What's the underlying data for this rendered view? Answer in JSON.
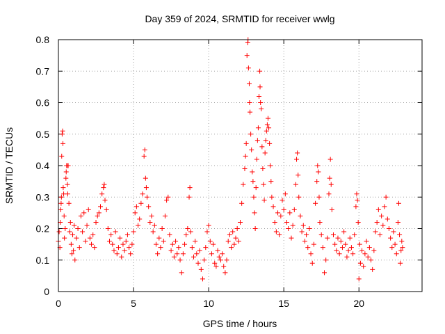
{
  "chart_data": {
    "type": "scatter",
    "title": "Day 359 of 2024, SRMTID for receiver wwlg",
    "xlabel": "GPS time / hours",
    "ylabel": "SRMTID / TECUs",
    "xlim": [
      0,
      24.2
    ],
    "ylim": [
      0,
      0.8
    ],
    "xticks": [
      0,
      5,
      10,
      15,
      20
    ],
    "yticks": [
      0,
      0.1,
      0.2,
      0.3,
      0.4,
      0.5,
      0.6,
      0.7,
      0.8
    ],
    "xtick_labels": [
      "0",
      "5",
      "10",
      "15",
      "20"
    ],
    "ytick_labels": [
      "0",
      "0.1",
      "0.2",
      "0.3",
      "0.4",
      "0.5",
      "0.6",
      "0.7",
      "0.8"
    ],
    "grid": true,
    "marker": "+",
    "color": "#ff0000",
    "series": [
      {
        "name": "SRMTID",
        "points": [
          [
            0.0,
            0.16
          ],
          [
            0.05,
            0.19
          ],
          [
            0.1,
            0.14
          ],
          [
            0.12,
            0.22
          ],
          [
            0.15,
            0.26
          ],
          [
            0.18,
            0.28
          ],
          [
            0.2,
            0.3
          ],
          [
            0.22,
            0.43
          ],
          [
            0.25,
            0.5
          ],
          [
            0.28,
            0.51
          ],
          [
            0.3,
            0.47
          ],
          [
            0.32,
            0.33
          ],
          [
            0.35,
            0.31
          ],
          [
            0.38,
            0.24
          ],
          [
            0.4,
            0.17
          ],
          [
            0.45,
            0.2
          ],
          [
            0.5,
            0.36
          ],
          [
            0.52,
            0.38
          ],
          [
            0.55,
            0.4
          ],
          [
            0.58,
            0.4
          ],
          [
            0.6,
            0.34
          ],
          [
            0.62,
            0.31
          ],
          [
            0.65,
            0.4
          ],
          [
            0.7,
            0.28
          ],
          [
            0.75,
            0.19
          ],
          [
            0.8,
            0.22
          ],
          [
            0.85,
            0.15
          ],
          [
            0.9,
            0.12
          ],
          [
            0.95,
            0.18
          ],
          [
            1.0,
            0.13
          ],
          [
            1.05,
            0.21
          ],
          [
            1.1,
            0.1
          ],
          [
            1.2,
            0.17
          ],
          [
            1.3,
            0.2
          ],
          [
            1.4,
            0.14
          ],
          [
            1.5,
            0.24
          ],
          [
            1.6,
            0.19
          ],
          [
            1.7,
            0.25
          ],
          [
            1.8,
            0.16
          ],
          [
            1.9,
            0.21
          ],
          [
            2.0,
            0.26
          ],
          [
            2.1,
            0.17
          ],
          [
            2.2,
            0.15
          ],
          [
            2.3,
            0.18
          ],
          [
            2.4,
            0.14
          ],
          [
            2.5,
            0.22
          ],
          [
            2.6,
            0.24
          ],
          [
            2.7,
            0.25
          ],
          [
            2.8,
            0.27
          ],
          [
            2.9,
            0.31
          ],
          [
            3.0,
            0.33
          ],
          [
            3.05,
            0.34
          ],
          [
            3.1,
            0.29
          ],
          [
            3.2,
            0.26
          ],
          [
            3.3,
            0.2
          ],
          [
            3.4,
            0.16
          ],
          [
            3.5,
            0.18
          ],
          [
            3.6,
            0.15
          ],
          [
            3.7,
            0.13
          ],
          [
            3.8,
            0.19
          ],
          [
            3.9,
            0.12
          ],
          [
            4.0,
            0.14
          ],
          [
            4.1,
            0.17
          ],
          [
            4.2,
            0.11
          ],
          [
            4.3,
            0.15
          ],
          [
            4.4,
            0.13
          ],
          [
            4.5,
            0.16
          ],
          [
            4.6,
            0.18
          ],
          [
            4.7,
            0.14
          ],
          [
            4.8,
            0.12
          ],
          [
            4.9,
            0.15
          ],
          [
            5.0,
            0.19
          ],
          [
            5.1,
            0.25
          ],
          [
            5.2,
            0.27
          ],
          [
            5.3,
            0.21
          ],
          [
            5.4,
            0.23
          ],
          [
            5.5,
            0.28
          ],
          [
            5.6,
            0.31
          ],
          [
            5.7,
            0.43
          ],
          [
            5.75,
            0.45
          ],
          [
            5.8,
            0.36
          ],
          [
            5.85,
            0.33
          ],
          [
            5.9,
            0.3
          ],
          [
            6.0,
            0.27
          ],
          [
            6.1,
            0.22
          ],
          [
            6.2,
            0.24
          ],
          [
            6.3,
            0.19
          ],
          [
            6.4,
            0.21
          ],
          [
            6.5,
            0.15
          ],
          [
            6.6,
            0.12
          ],
          [
            6.7,
            0.17
          ],
          [
            6.8,
            0.14
          ],
          [
            6.9,
            0.2
          ],
          [
            7.0,
            0.16
          ],
          [
            7.1,
            0.24
          ],
          [
            7.2,
            0.29
          ],
          [
            7.3,
            0.3
          ],
          [
            7.4,
            0.18
          ],
          [
            7.5,
            0.13
          ],
          [
            7.6,
            0.15
          ],
          [
            7.7,
            0.11
          ],
          [
            7.8,
            0.16
          ],
          [
            7.9,
            0.12
          ],
          [
            8.0,
            0.14
          ],
          [
            8.1,
            0.1
          ],
          [
            8.2,
            0.06
          ],
          [
            8.3,
            0.12
          ],
          [
            8.4,
            0.15
          ],
          [
            8.5,
            0.18
          ],
          [
            8.6,
            0.2
          ],
          [
            8.7,
            0.3
          ],
          [
            8.75,
            0.33
          ],
          [
            8.8,
            0.19
          ],
          [
            8.9,
            0.14
          ],
          [
            9.0,
            0.11
          ],
          [
            9.1,
            0.16
          ],
          [
            9.2,
            0.12
          ],
          [
            9.3,
            0.09
          ],
          [
            9.4,
            0.13
          ],
          [
            9.5,
            0.07
          ],
          [
            9.6,
            0.04
          ],
          [
            9.7,
            0.1
          ],
          [
            9.8,
            0.14
          ],
          [
            9.9,
            0.19
          ],
          [
            10.0,
            0.21
          ],
          [
            10.1,
            0.16
          ],
          [
            10.2,
            0.12
          ],
          [
            10.3,
            0.15
          ],
          [
            10.4,
            0.09
          ],
          [
            10.5,
            0.08
          ],
          [
            10.6,
            0.13
          ],
          [
            10.7,
            0.11
          ],
          [
            10.8,
            0.1
          ],
          [
            10.9,
            0.12
          ],
          [
            11.0,
            0.08
          ],
          [
            11.1,
            0.06
          ],
          [
            11.2,
            0.1
          ],
          [
            11.3,
            0.16
          ],
          [
            11.4,
            0.18
          ],
          [
            11.5,
            0.14
          ],
          [
            11.6,
            0.19
          ],
          [
            11.7,
            0.15
          ],
          [
            11.8,
            0.17
          ],
          [
            11.9,
            0.2
          ],
          [
            12.0,
            0.16
          ],
          [
            12.1,
            0.22
          ],
          [
            12.2,
            0.28
          ],
          [
            12.3,
            0.34
          ],
          [
            12.4,
            0.39
          ],
          [
            12.45,
            0.43
          ],
          [
            12.5,
            0.47
          ],
          [
            12.55,
            0.75
          ],
          [
            12.6,
            0.79
          ],
          [
            12.62,
            0.8
          ],
          [
            12.65,
            0.71
          ],
          [
            12.7,
            0.66
          ],
          [
            12.72,
            0.6
          ],
          [
            12.75,
            0.57
          ],
          [
            12.8,
            0.5
          ],
          [
            12.85,
            0.45
          ],
          [
            12.9,
            0.38
          ],
          [
            12.95,
            0.35
          ],
          [
            13.0,
            0.3
          ],
          [
            13.05,
            0.25
          ],
          [
            13.1,
            0.2
          ],
          [
            13.15,
            0.33
          ],
          [
            13.2,
            0.42
          ],
          [
            13.25,
            0.48
          ],
          [
            13.3,
            0.52
          ],
          [
            13.35,
            0.62
          ],
          [
            13.4,
            0.7
          ],
          [
            13.42,
            0.65
          ],
          [
            13.45,
            0.6
          ],
          [
            13.5,
            0.58
          ],
          [
            13.55,
            0.46
          ],
          [
            13.6,
            0.39
          ],
          [
            13.65,
            0.34
          ],
          [
            13.7,
            0.29
          ],
          [
            13.75,
            0.44
          ],
          [
            13.8,
            0.48
          ],
          [
            13.85,
            0.51
          ],
          [
            13.9,
            0.53
          ],
          [
            13.95,
            0.55
          ],
          [
            14.0,
            0.52
          ],
          [
            14.05,
            0.47
          ],
          [
            14.1,
            0.4
          ],
          [
            14.15,
            0.35
          ],
          [
            14.2,
            0.3
          ],
          [
            14.3,
            0.27
          ],
          [
            14.4,
            0.22
          ],
          [
            14.5,
            0.19
          ],
          [
            14.6,
            0.25
          ],
          [
            14.7,
            0.18
          ],
          [
            14.8,
            0.24
          ],
          [
            14.9,
            0.29
          ],
          [
            15.0,
            0.26
          ],
          [
            15.1,
            0.31
          ],
          [
            15.2,
            0.22
          ],
          [
            15.3,
            0.2
          ],
          [
            15.4,
            0.25
          ],
          [
            15.5,
            0.17
          ],
          [
            15.6,
            0.21
          ],
          [
            15.7,
            0.26
          ],
          [
            15.8,
            0.34
          ],
          [
            15.85,
            0.42
          ],
          [
            15.9,
            0.44
          ],
          [
            15.95,
            0.37
          ],
          [
            16.0,
            0.3
          ],
          [
            16.1,
            0.24
          ],
          [
            16.2,
            0.19
          ],
          [
            16.3,
            0.21
          ],
          [
            16.4,
            0.16
          ],
          [
            16.5,
            0.18
          ],
          [
            16.6,
            0.14
          ],
          [
            16.7,
            0.2
          ],
          [
            16.8,
            0.12
          ],
          [
            16.9,
            0.09
          ],
          [
            17.0,
            0.15
          ],
          [
            17.1,
            0.28
          ],
          [
            17.2,
            0.35
          ],
          [
            17.25,
            0.4
          ],
          [
            17.3,
            0.38
          ],
          [
            17.35,
            0.3
          ],
          [
            17.4,
            0.22
          ],
          [
            17.5,
            0.18
          ],
          [
            17.6,
            0.14
          ],
          [
            17.7,
            0.06
          ],
          [
            17.8,
            0.1
          ],
          [
            17.9,
            0.17
          ],
          [
            18.0,
            0.31
          ],
          [
            18.05,
            0.36
          ],
          [
            18.1,
            0.42
          ],
          [
            18.15,
            0.34
          ],
          [
            18.2,
            0.26
          ],
          [
            18.3,
            0.18
          ],
          [
            18.4,
            0.15
          ],
          [
            18.5,
            0.13
          ],
          [
            18.6,
            0.17
          ],
          [
            18.7,
            0.12
          ],
          [
            18.8,
            0.16
          ],
          [
            18.9,
            0.14
          ],
          [
            19.0,
            0.19
          ],
          [
            19.1,
            0.15
          ],
          [
            19.2,
            0.11
          ],
          [
            19.3,
            0.13
          ],
          [
            19.4,
            0.17
          ],
          [
            19.5,
            0.14
          ],
          [
            19.6,
            0.12
          ],
          [
            19.7,
            0.18
          ],
          [
            19.8,
            0.27
          ],
          [
            19.85,
            0.31
          ],
          [
            19.9,
            0.29
          ],
          [
            19.95,
            0.22
          ],
          [
            20.0,
            0.04
          ],
          [
            20.05,
            0.15
          ],
          [
            20.1,
            0.09
          ],
          [
            20.2,
            0.13
          ],
          [
            20.3,
            0.08
          ],
          [
            20.4,
            0.12
          ],
          [
            20.5,
            0.16
          ],
          [
            20.6,
            0.11
          ],
          [
            20.7,
            0.14
          ],
          [
            20.8,
            0.1
          ],
          [
            20.9,
            0.07
          ],
          [
            21.0,
            0.13
          ],
          [
            21.1,
            0.19
          ],
          [
            21.2,
            0.22
          ],
          [
            21.3,
            0.26
          ],
          [
            21.4,
            0.18
          ],
          [
            21.5,
            0.24
          ],
          [
            21.6,
            0.21
          ],
          [
            21.7,
            0.27
          ],
          [
            21.8,
            0.3
          ],
          [
            21.9,
            0.23
          ],
          [
            22.0,
            0.2
          ],
          [
            22.1,
            0.17
          ],
          [
            22.2,
            0.14
          ],
          [
            22.3,
            0.19
          ],
          [
            22.4,
            0.15
          ],
          [
            22.5,
            0.12
          ],
          [
            22.6,
            0.22
          ],
          [
            22.65,
            0.28
          ],
          [
            22.7,
            0.18
          ],
          [
            22.75,
            0.09
          ],
          [
            22.8,
            0.13
          ],
          [
            22.85,
            0.16
          ],
          [
            22.9,
            0.14
          ]
        ]
      }
    ]
  }
}
